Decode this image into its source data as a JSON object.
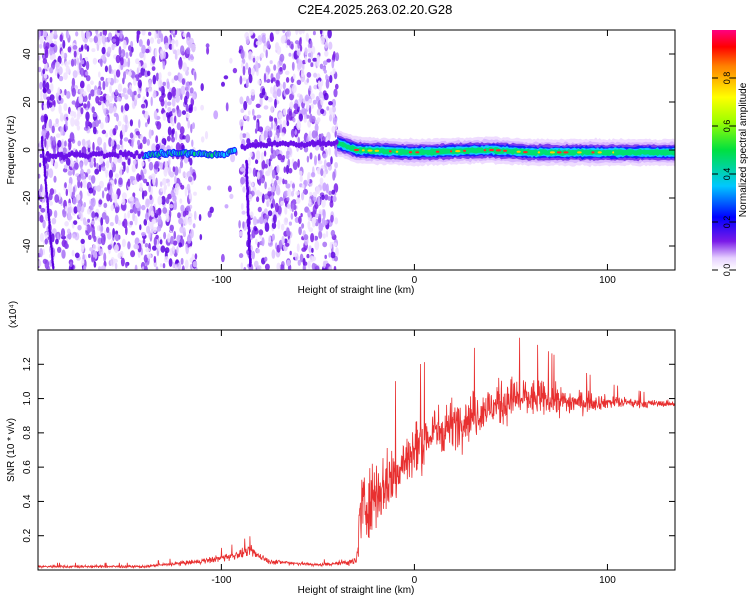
{
  "figure": {
    "title": "C2E4.2025.263.02.20.G28"
  },
  "chart_data": [
    {
      "type": "heatmap",
      "xlabel": "Height of straight line (km)",
      "ylabel": "Frequency (Hz)",
      "xlim": [
        -195,
        135
      ],
      "ylim": [
        -50,
        50
      ],
      "xticks": [
        -100,
        0,
        100
      ],
      "yticks": [
        -40,
        -20,
        0,
        20,
        40
      ],
      "colorbar": {
        "label": "Normalized spectral amplitude",
        "range": [
          0,
          1
        ],
        "ticks": [
          "0.0",
          "0.2",
          "0.4",
          "0.6",
          "0.8"
        ]
      },
      "colors": {
        "signal_peak": "#ff2a2a",
        "signal_mid": "#00e070",
        "noise": "#7a2cf0"
      },
      "noisy_region_km": [
        -195,
        -40
      ],
      "gap_region_km": [
        -113,
        -90
      ],
      "tone_region_km": [
        -40,
        135
      ],
      "tone_center_hz": [
        [
          -140,
          -2
        ],
        [
          -120,
          -1
        ],
        [
          -100,
          -2
        ],
        [
          -85,
          2
        ],
        [
          -40,
          3
        ],
        [
          -30,
          0
        ],
        [
          0,
          -1
        ],
        [
          40,
          0
        ],
        [
          60,
          -1
        ],
        [
          100,
          -1
        ],
        [
          135,
          -1
        ]
      ]
    },
    {
      "type": "line",
      "xlabel": "Height of straight line (km)",
      "ylabel": "SNR (10 * v/v)",
      "scale_note": "(x10⁴)",
      "xlim": [
        -195,
        135
      ],
      "ylim": [
        0,
        1.4
      ],
      "xticks": [
        -100,
        0,
        100
      ],
      "yticks": [
        "0.2",
        "0.4",
        "0.6",
        "0.8",
        "1.0",
        "1.2"
      ],
      "colors": {
        "line": "#e83030"
      },
      "envelope": {
        "x": [
          -195,
          -140,
          -110,
          -95,
          -85,
          -75,
          -50,
          -30,
          -28,
          -24,
          -20,
          -10,
          0,
          10,
          25,
          40,
          50,
          55,
          65,
          80,
          100,
          120,
          135
        ],
        "mean": [
          0.02,
          0.02,
          0.05,
          0.08,
          0.11,
          0.05,
          0.03,
          0.05,
          0.35,
          0.4,
          0.45,
          0.55,
          0.7,
          0.8,
          0.88,
          0.95,
          1.0,
          1.0,
          1.0,
          0.98,
          0.98,
          0.97,
          0.97
        ],
        "spread": [
          0.01,
          0.01,
          0.02,
          0.03,
          0.04,
          0.02,
          0.01,
          0.03,
          0.28,
          0.3,
          0.25,
          0.25,
          0.22,
          0.2,
          0.18,
          0.17,
          0.17,
          0.16,
          0.14,
          0.1,
          0.05,
          0.03,
          0.02
        ]
      }
    }
  ]
}
